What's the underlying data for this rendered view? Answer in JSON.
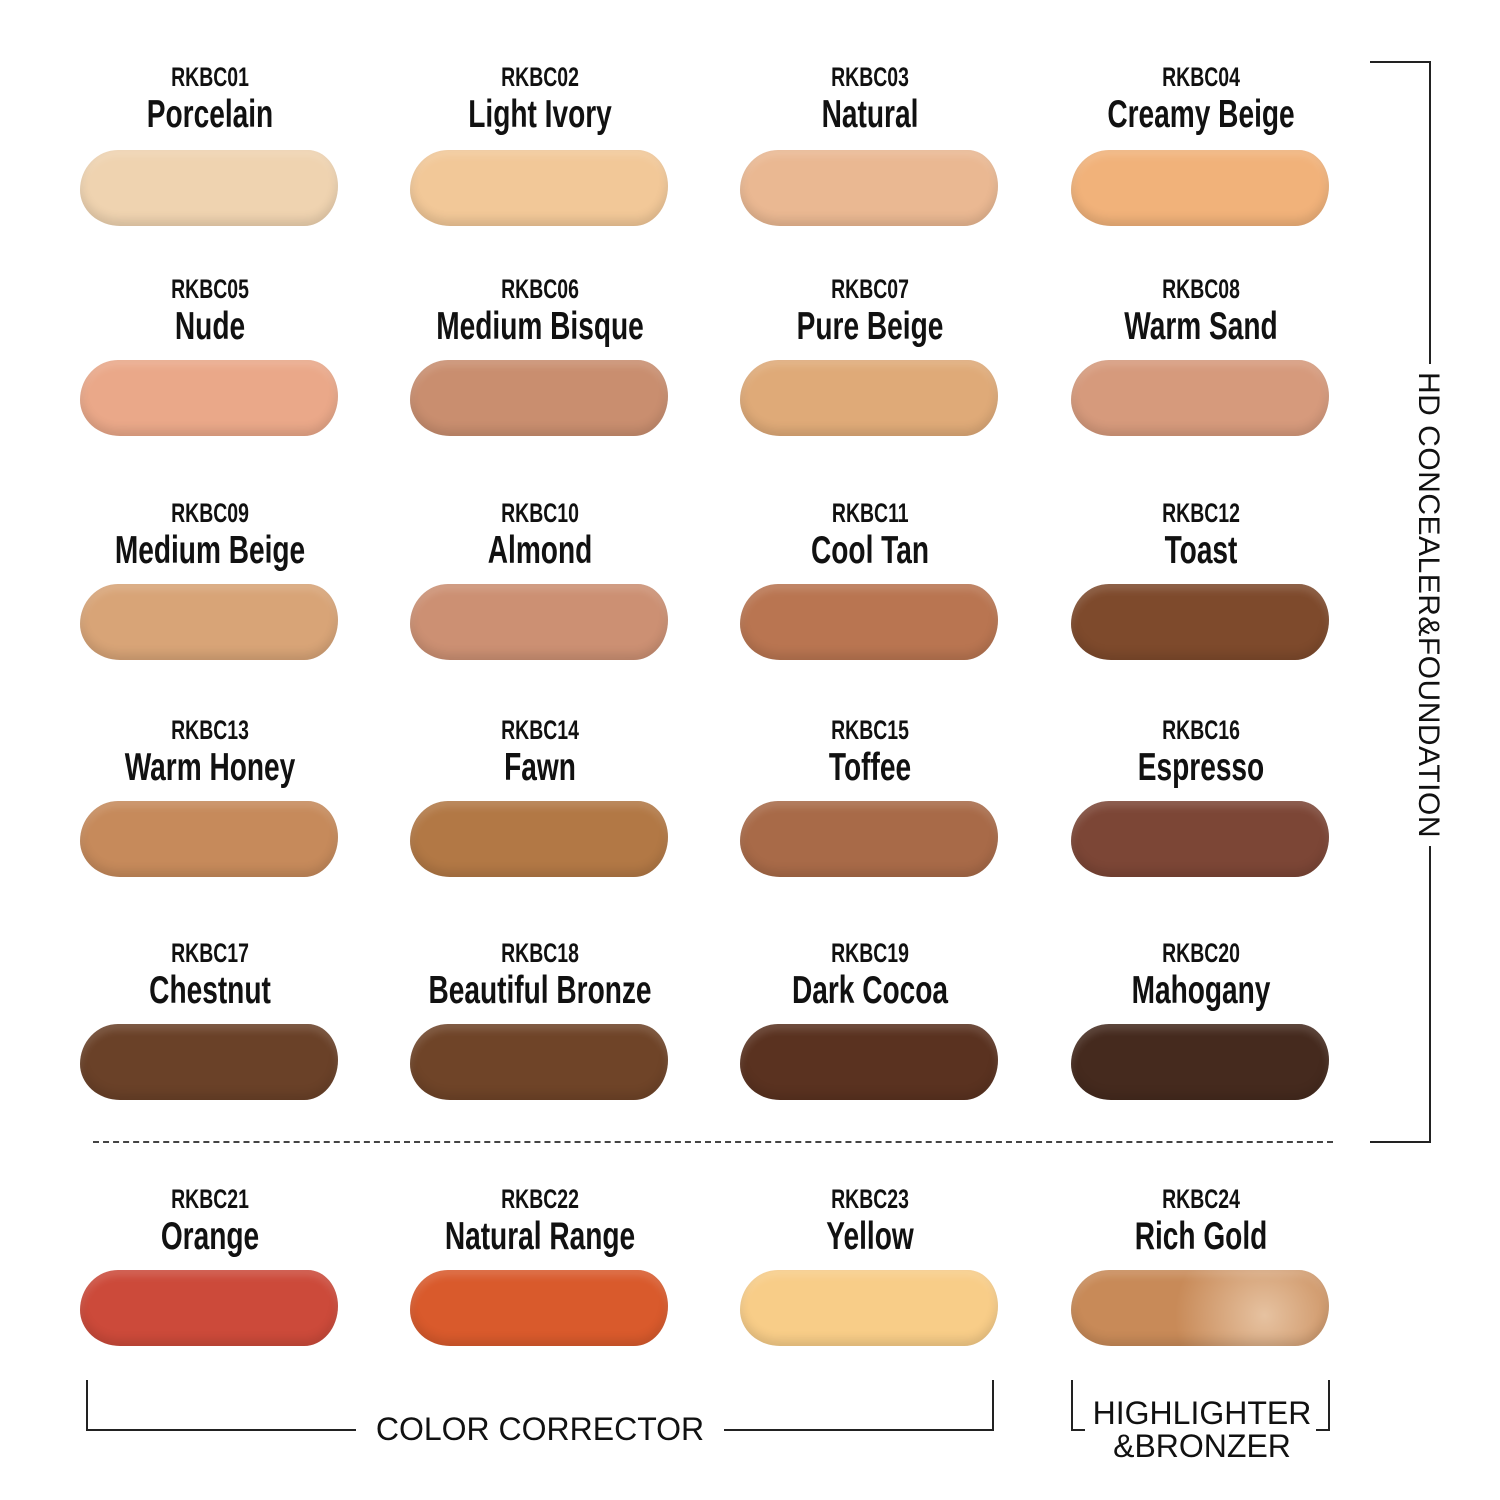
{
  "swatches": [
    {
      "code": "RKBC01",
      "name": "Porcelain",
      "color": "#efd3b0"
    },
    {
      "code": "RKBC02",
      "name": "Light Ivory",
      "color": "#f2c898"
    },
    {
      "code": "RKBC03",
      "name": "Natural",
      "color": "#eab892"
    },
    {
      "code": "RKBC04",
      "name": "Creamy Beige",
      "color": "#f1b27a"
    },
    {
      "code": "RKBC05",
      "name": "Nude",
      "color": "#eaa889"
    },
    {
      "code": "RKBC06",
      "name": "Medium Bisque",
      "color": "#c98e6f"
    },
    {
      "code": "RKBC07",
      "name": "Pure Beige",
      "color": "#dfaa78"
    },
    {
      "code": "RKBC08",
      "name": "Warm Sand",
      "color": "#d69a7c"
    },
    {
      "code": "RKBC09",
      "name": "Medium Beige",
      "color": "#d8a477"
    },
    {
      "code": "RKBC10",
      "name": "Almond",
      "color": "#cc9073"
    },
    {
      "code": "RKBC11",
      "name": "Cool Tan",
      "color": "#b97551"
    },
    {
      "code": "RKBC12",
      "name": "Toast",
      "color": "#7e4a2c"
    },
    {
      "code": "RKBC13",
      "name": "Warm Honey",
      "color": "#c68a5b"
    },
    {
      "code": "RKBC14",
      "name": "Fawn",
      "color": "#b27845"
    },
    {
      "code": "RKBC15",
      "name": "Toffee",
      "color": "#a86a48"
    },
    {
      "code": "RKBC16",
      "name": "Espresso",
      "color": "#7c4636"
    },
    {
      "code": "RKBC17",
      "name": "Chestnut",
      "color": "#6a4128"
    },
    {
      "code": "RKBC18",
      "name": "Beautiful Bronze",
      "color": "#6f4428"
    },
    {
      "code": "RKBC19",
      "name": "Dark Cocoa",
      "color": "#5a3220"
    },
    {
      "code": "RKBC20",
      "name": "Mahogany",
      "color": "#452a1e"
    },
    {
      "code": "RKBC21",
      "name": "Orange",
      "color": "#cc4a3a"
    },
    {
      "code": "RKBC22",
      "name": "Natural Range",
      "color": "#d95a2c"
    },
    {
      "code": "RKBC23",
      "name": "Yellow",
      "color": "#f8cd88"
    },
    {
      "code": "RKBC24",
      "name": "Rich Gold",
      "color": "#c88a58"
    }
  ],
  "groups": {
    "foundation": "HD CONCEALER&FOUNDATION",
    "corrector": "COLOR CORRECTOR",
    "highlighter_line1": "HIGHLIGHTER",
    "highlighter_line2": "&BRONZER"
  }
}
